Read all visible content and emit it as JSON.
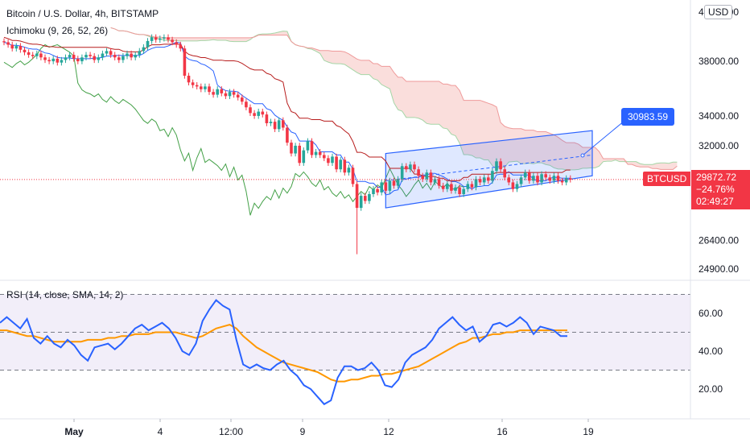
{
  "header": {
    "symbol_title": "Bitcoin / U.S. Dollar, 4h, BITSTAMP",
    "indicator": "Ichimoku (9, 26, 52, 26)",
    "rsi_title": "RSI (14, close, SMA, 14, 2)",
    "currency": "USD"
  },
  "price_box": {
    "symbol": "BTCUSD",
    "price": "29872.72",
    "change": "−24.76%",
    "countdown": "02:49:27"
  },
  "callout": {
    "value": "30983.59"
  },
  "colors": {
    "up": "#26a69a",
    "down": "#f23645",
    "tenkan": "#2962ff",
    "kijun": "#b71c1c",
    "lagging": "#43a047",
    "cloud": "#f6c3c0",
    "channel": "#2962ff",
    "rsi_line": "#2962ff",
    "rsi_ma": "#ff9800",
    "rsi_band": "#ede7f6"
  },
  "chart_data": [
    {
      "type": "candlestick",
      "title": "Bitcoin / U.S. Dollar, 4h, BITSTAMP",
      "y_ticks": [
        "42000.00",
        "38000.00",
        "34000.00",
        "32000.00",
        "26400.00",
        "24900.00"
      ],
      "x_ticks": [
        "May",
        "4",
        "12:00",
        "9",
        "12",
        "16",
        "19"
      ],
      "ylim": [
        24900,
        42000
      ],
      "y_scale": "log",
      "last_price": 29872.72,
      "closes": [
        39500,
        39300,
        39000,
        39200,
        38900,
        38700,
        38500,
        38400,
        38600,
        38300,
        38100,
        38000,
        38200,
        37900,
        38100,
        38300,
        38500,
        38200,
        38000,
        38300,
        38500,
        38400,
        38100,
        38300,
        38600,
        38800,
        38500,
        38300,
        38100,
        38400,
        38600,
        38300,
        38500,
        38800,
        39100,
        39600,
        39900,
        39700,
        39800,
        39900,
        39700,
        39500,
        39300,
        39000,
        36900,
        36400,
        36200,
        36100,
        35900,
        36100,
        35700,
        35500,
        35900,
        35600,
        35400,
        35700,
        35500,
        35300,
        35000,
        34600,
        34200,
        34000,
        34300,
        34100,
        33500,
        33600,
        33100,
        33700,
        33200,
        32200,
        31500,
        32000,
        30900,
        31700,
        32300,
        31400,
        31600,
        31400,
        31200,
        30900,
        31300,
        30500,
        31100,
        30300,
        30600,
        29600,
        28200,
        28900,
        28600,
        29000,
        29300,
        29100,
        29700,
        29200,
        29800,
        29500,
        29900,
        30700,
        30500,
        30800,
        30500,
        30100,
        29900,
        30300,
        29700,
        29900,
        29500,
        29300,
        29600,
        29200,
        29400,
        29000,
        29300,
        29600,
        29400,
        29900,
        29700,
        30000,
        29800,
        30400,
        31000,
        30500,
        30000,
        29700,
        29300,
        29600,
        30000,
        30300,
        29800,
        30100,
        29700,
        30200,
        30000,
        29800,
        30100,
        29800,
        29700,
        29950,
        29872.72
      ]
    },
    {
      "type": "line",
      "title": "RSI (14, close, SMA, 14, 2)",
      "y_ticks": [
        "60.00",
        "40.00",
        "20.00"
      ],
      "ylim": [
        10,
        75
      ],
      "bands": [
        70,
        50,
        30
      ],
      "series": [
        {
          "name": "RSI",
          "values": [
            55,
            58,
            55,
            52,
            57,
            47,
            44,
            48,
            44,
            42,
            46,
            43,
            38,
            35,
            42,
            43,
            44,
            41,
            44,
            48,
            52,
            54,
            51,
            53,
            55,
            52,
            47,
            40,
            38,
            44,
            56,
            62,
            67,
            64,
            62,
            46,
            33,
            31,
            33,
            31,
            30,
            33,
            35,
            30,
            27,
            22,
            20,
            16,
            12,
            14,
            26,
            32,
            32,
            30,
            31,
            34,
            30,
            22,
            21,
            25,
            34,
            38,
            40,
            42,
            46,
            52,
            55,
            58,
            54,
            51,
            53,
            45,
            48,
            54,
            55,
            53,
            55,
            58,
            55,
            49,
            53,
            52,
            51,
            48,
            48
          ]
        },
        {
          "name": "MA",
          "values": [
            51,
            51,
            50,
            49,
            48,
            48,
            47,
            46,
            45,
            45,
            45,
            45,
            45,
            46,
            46,
            46,
            47,
            47,
            48,
            48,
            49,
            49,
            49,
            50,
            50,
            50,
            50,
            49,
            48,
            47,
            48,
            50,
            52,
            53,
            54,
            52,
            48,
            45,
            42,
            40,
            38,
            36,
            34,
            33,
            32,
            31,
            30,
            29,
            27,
            25,
            24,
            24,
            25,
            25,
            26,
            27,
            27,
            28,
            28,
            29,
            30,
            31,
            32,
            34,
            36,
            38,
            40,
            42,
            44,
            45,
            47,
            47,
            48,
            49,
            49,
            50,
            50,
            51,
            51,
            51,
            51,
            51,
            51,
            51,
            51
          ]
        }
      ]
    }
  ]
}
